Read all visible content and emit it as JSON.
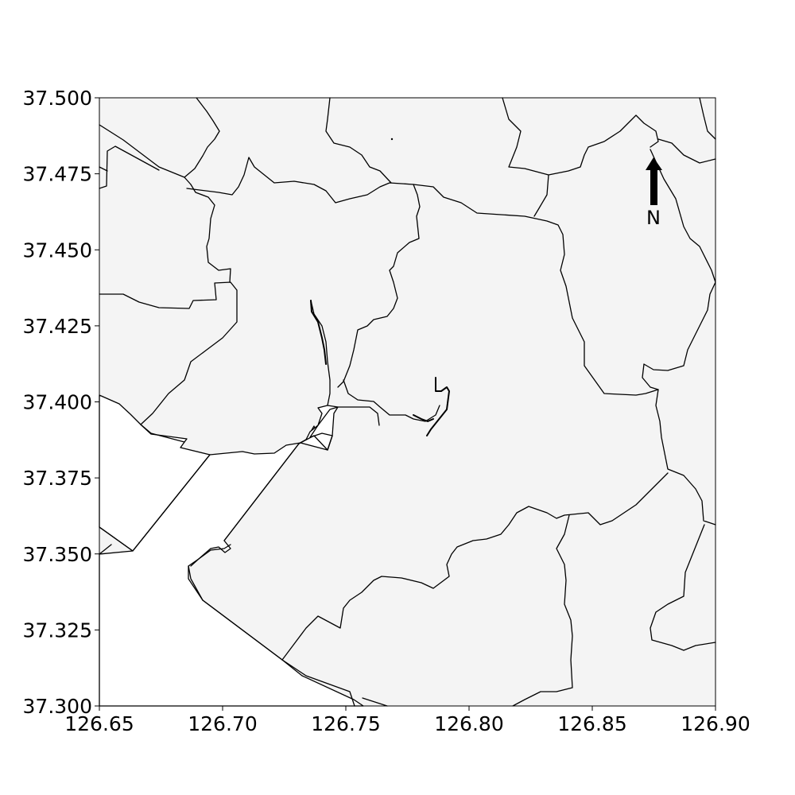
{
  "map": {
    "x_ticks": [
      "126.65",
      "126.70",
      "126.75",
      "126.80",
      "126.85",
      "126.90"
    ],
    "y_ticks": [
      "37.500",
      "37.475",
      "37.450",
      "37.425",
      "37.400",
      "37.375",
      "37.350",
      "37.325",
      "37.300"
    ],
    "x_tick_values": [
      126.65,
      126.7,
      126.75,
      126.8,
      126.85,
      126.9
    ],
    "y_tick_values": [
      37.5,
      37.475,
      37.45,
      37.425,
      37.4,
      37.375,
      37.35,
      37.325,
      37.3
    ],
    "xlim": [
      126.65,
      126.9
    ],
    "ylim": [
      37.3,
      37.5
    ],
    "north_arrow": {
      "label": "N"
    },
    "colors": {
      "land": "#f4f4f4",
      "sea": "#ffffff",
      "border": "#000000"
    }
  }
}
